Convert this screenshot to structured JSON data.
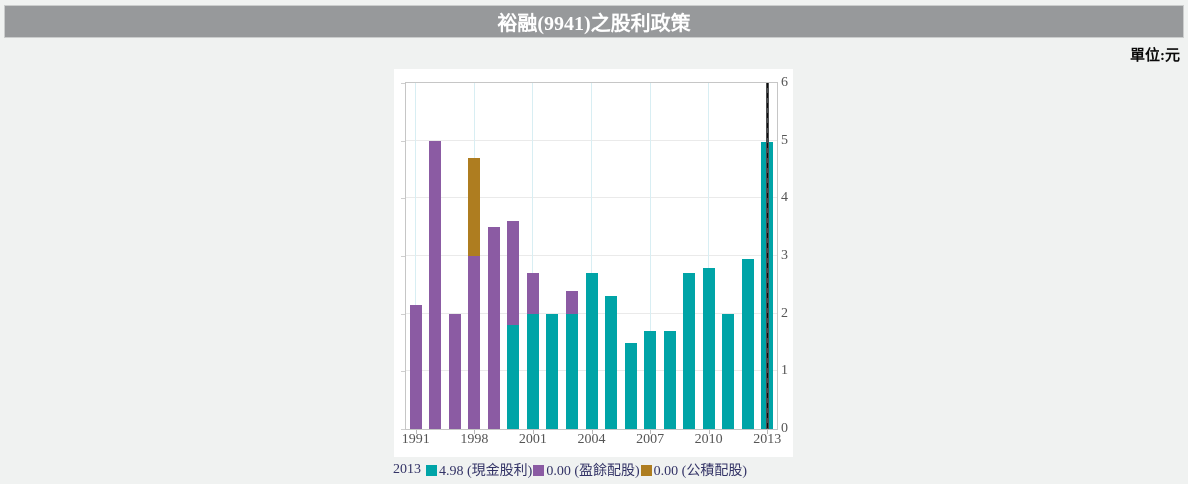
{
  "header": {
    "title": "裕融(9941)之股利政策"
  },
  "unit_label": "單位:元",
  "chart_data": {
    "type": "bar",
    "stacked": true,
    "title": "裕融(9941)之股利政策",
    "ylabel": "元",
    "ylim": [
      0,
      6
    ],
    "y_ticks": [
      0,
      1,
      2,
      3,
      4,
      5,
      6
    ],
    "grid": true,
    "num_bars": 19,
    "x_tick_labels": [
      "1991",
      "1998",
      "2001",
      "2004",
      "2007",
      "2010",
      "2013"
    ],
    "x_tick_positions": [
      0,
      3,
      6,
      9,
      12,
      15,
      18
    ],
    "highlight_index": 18,
    "series": [
      {
        "name": "現金股利",
        "color": "#00A4A7",
        "values": [
          0,
          0,
          0,
          0,
          0,
          1.8,
          2.0,
          2.0,
          2.0,
          2.7,
          2.3,
          1.5,
          1.7,
          1.7,
          2.7,
          2.8,
          2.0,
          2.95,
          4.98
        ]
      },
      {
        "name": "盈餘配股",
        "color": "#8B5BA3",
        "values": [
          2.15,
          5.0,
          2.0,
          3.0,
          3.5,
          1.8,
          0.7,
          0,
          0.4,
          0,
          0,
          0,
          0,
          0,
          0,
          0,
          0,
          0,
          0
        ]
      },
      {
        "name": "公積配股",
        "color": "#AE7D20",
        "values": [
          0,
          0,
          0,
          1.7,
          0,
          0,
          0,
          0,
          0,
          0,
          0,
          0,
          0,
          0,
          0,
          0,
          0,
          0,
          0
        ]
      }
    ],
    "legend": {
      "year": "2013",
      "items": [
        {
          "text": "4.98 (現金股利)",
          "color": "#00A4A7"
        },
        {
          "text": "0.00 (盈餘配股)",
          "color": "#8B5BA3"
        },
        {
          "text": "0.00 (公積配股)",
          "color": "#AE7D20"
        }
      ]
    }
  },
  "colors": {
    "page_bg": "#F0F2F1",
    "header_bg": "#97999B",
    "header_border": "#CBCDCD",
    "title_text": "#FFFFFF",
    "card_bg": "#FFFFFF",
    "plot_border": "#C6C6C6",
    "hgrid": "#EAEAEA",
    "vgrid": "#D8EEF3",
    "axis_text": "#555555",
    "legend_text": "#333366",
    "cursor_line": "#4A4C4E"
  }
}
